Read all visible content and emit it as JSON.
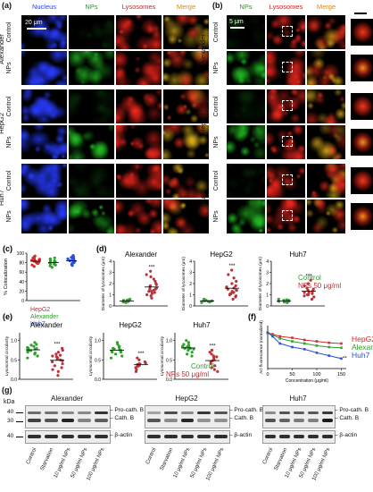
{
  "panel_a": {
    "label": "(a)",
    "headers": [
      "Nucleus",
      "NPs",
      "Lysosomes",
      "Merge"
    ],
    "header_colors": [
      "#1f3fff",
      "#1a9a1a",
      "#e01b1b",
      "#e08a00"
    ],
    "scale_bar": "20 μm",
    "groups": [
      "Alexander",
      "HepG2",
      "Huh7"
    ],
    "rows": [
      "Control",
      "NPs"
    ]
  },
  "panel_b": {
    "label": "(b)",
    "headers": [
      "NPs",
      "Lysosomes",
      "Merge"
    ],
    "header_colors": [
      "#1a9a1a",
      "#e01b1b",
      "#e08a00"
    ],
    "scale_bar": "5 μm",
    "groups": [
      "Alexander",
      "HepG2",
      "Huh7"
    ],
    "rows": [
      "Control",
      "NPs"
    ]
  },
  "panel_c": {
    "label": "(c)",
    "ylabel": "% Colocalization",
    "yticks": [
      "0",
      "20",
      "40",
      "60",
      "80",
      "100"
    ],
    "legend": [
      {
        "name": "HepG2",
        "color": "#d42a2a"
      },
      {
        "name": "Alexander",
        "color": "#2ea02e"
      },
      {
        "name": "Huh7",
        "color": "#2b4fd8"
      }
    ]
  },
  "panel_d": {
    "label": "(d)",
    "ylabel": "Diameter of lysosomes (μm)",
    "legend": [
      {
        "name": "Control",
        "color": "#2ea02e"
      },
      {
        "name": "NPs 50 μg/ml",
        "color": "#b8333a"
      }
    ],
    "significance": "***"
  },
  "panel_e": {
    "label": "(e)",
    "ylabel": "Lysosomal circularity",
    "yticks": [
      "0.0",
      "0.5",
      "1.0"
    ],
    "legend": [
      {
        "name": "Control",
        "color": "#2ea02e"
      },
      {
        "name": "NPs 50 μg/ml",
        "color": "#b8333a"
      }
    ],
    "significance": "***"
  },
  "panel_f": {
    "label": "(f)",
    "ylabel": "AO fluorescence (normalized)",
    "xlabel": "Concentration (μg/ml)",
    "legend": [
      {
        "name": "HepG2",
        "color": "#d42a2a"
      },
      {
        "name": "Alexander",
        "color": "#2ea02e"
      },
      {
        "name": "Huh7",
        "color": "#2b4fd8"
      }
    ],
    "significance": "**"
  },
  "panel_g": {
    "label": "(g)",
    "kda_label": "kDa",
    "mw_markers": [
      "40",
      "30",
      "40"
    ],
    "band_labels": [
      "Pro-cath. B",
      "Cath. B",
      "β-actin"
    ],
    "lanes": [
      "Control",
      "Starvation",
      "10 μg/ml NPs",
      "50 μg/ml NPs",
      "100 μg/ml NPs"
    ],
    "blots": [
      "Alexander",
      "HepG2",
      "Huh7"
    ]
  },
  "chart_data": [
    {
      "id": "c",
      "type": "scatter",
      "categories": [
        "HepG2",
        "Alexander",
        "Huh7"
      ],
      "series": [
        {
          "name": "HepG2",
          "mean": 83,
          "values": [
            72,
            75,
            78,
            80,
            81,
            82,
            83,
            84,
            85,
            86,
            87,
            88,
            90,
            92,
            94
          ]
        },
        {
          "name": "Alexander",
          "mean": 80,
          "values": [
            70,
            73,
            75,
            77,
            78,
            79,
            80,
            81,
            82,
            83,
            84,
            86,
            88,
            90
          ]
        },
        {
          "name": "Huh7",
          "mean": 84,
          "values": [
            74,
            76,
            78,
            80,
            82,
            83,
            84,
            85,
            86,
            87,
            88,
            89,
            91,
            93,
            95
          ]
        }
      ],
      "ylabel": "% Colocalization",
      "ylim": [
        0,
        100
      ]
    },
    {
      "id": "d",
      "type": "scatter",
      "subplots": [
        {
          "title": "Alexander",
          "ylim": [
            0,
            4
          ],
          "yticks": [
            0,
            1,
            2,
            3,
            4
          ],
          "control": [
            0.3,
            0.35,
            0.4,
            0.4,
            0.45,
            0.5,
            0.5,
            0.55,
            0.6,
            0.35,
            0.45,
            0.5
          ],
          "nps": [
            0.7,
            0.9,
            1.0,
            1.1,
            1.2,
            1.3,
            1.4,
            1.5,
            1.5,
            1.6,
            1.7,
            1.8,
            1.9,
            2.0,
            2.2,
            2.4,
            2.6,
            2.8,
            3.1,
            1.3,
            1.6
          ]
        },
        {
          "title": "HepG2",
          "ylim": [
            0,
            4
          ],
          "yticks": [
            0,
            1,
            2,
            3,
            4
          ],
          "control": [
            0.3,
            0.35,
            0.4,
            0.45,
            0.5,
            0.5,
            0.55,
            0.6,
            0.4,
            0.45
          ],
          "nps": [
            0.6,
            0.8,
            0.9,
            1.0,
            1.1,
            1.2,
            1.3,
            1.4,
            1.5,
            1.6,
            1.7,
            1.8,
            2.0,
            2.2,
            2.5,
            2.8,
            3.2,
            1.1,
            1.4
          ]
        },
        {
          "title": "Huh7",
          "ylim": [
            0,
            4
          ],
          "yticks": [
            0,
            1,
            2,
            3,
            4
          ],
          "control": [
            0.3,
            0.35,
            0.4,
            0.45,
            0.5,
            0.55,
            0.6,
            0.4,
            0.5,
            0.45
          ],
          "nps": [
            0.6,
            0.8,
            0.9,
            1.0,
            1.1,
            1.2,
            1.3,
            1.4,
            1.5,
            1.6,
            1.8,
            2.0,
            2.3,
            1.2,
            1.0
          ]
        }
      ],
      "ylabel": "Diameter of lysosomes (μm)"
    },
    {
      "id": "e",
      "type": "scatter",
      "subplots": [
        {
          "title": "Alexander",
          "ylim": [
            0,
            1.2
          ],
          "control": [
            0.55,
            0.6,
            0.65,
            0.7,
            0.72,
            0.75,
            0.78,
            0.8,
            0.82,
            0.85,
            0.88,
            0.9,
            0.95,
            0.68,
            0.74,
            0.79
          ],
          "nps": [
            0.1,
            0.2,
            0.25,
            0.3,
            0.35,
            0.4,
            0.45,
            0.5,
            0.52,
            0.55,
            0.6,
            0.62,
            0.65,
            0.7,
            0.75,
            0.8,
            0.48,
            0.58
          ]
        },
        {
          "title": "HepG2",
          "ylim": [
            0,
            1.2
          ],
          "control": [
            0.55,
            0.6,
            0.65,
            0.7,
            0.72,
            0.75,
            0.78,
            0.8,
            0.82,
            0.85,
            0.9,
            0.95,
            0.7,
            0.76
          ],
          "nps": [
            0.2,
            0.25,
            0.3,
            0.33,
            0.35,
            0.38,
            0.4,
            0.42,
            0.45,
            0.5,
            0.55,
            0.36,
            0.4
          ]
        },
        {
          "title": "Huh7",
          "ylim": [
            0,
            1.2
          ],
          "control": [
            0.6,
            0.65,
            0.7,
            0.75,
            0.78,
            0.8,
            0.82,
            0.85,
            0.88,
            0.9,
            0.95,
            1.0,
            0.84,
            0.8
          ],
          "nps": [
            0.2,
            0.25,
            0.3,
            0.35,
            0.4,
            0.45,
            0.5,
            0.55,
            0.6,
            0.65,
            0.7,
            0.75,
            0.48,
            0.58
          ]
        }
      ],
      "ylabel": "Lysosomal circularity"
    },
    {
      "id": "f",
      "type": "line",
      "x": [
        0,
        10,
        25,
        50,
        75,
        100,
        125,
        150
      ],
      "xticks": [
        0,
        50,
        100,
        150
      ],
      "series": [
        {
          "name": "HepG2",
          "values": [
            1.0,
            0.98,
            0.95,
            0.93,
            0.9,
            0.88,
            0.86,
            0.85
          ]
        },
        {
          "name": "Alexander",
          "values": [
            1.0,
            0.97,
            0.92,
            0.88,
            0.85,
            0.82,
            0.8,
            0.79
          ]
        },
        {
          "name": "Huh7",
          "values": [
            1.0,
            0.95,
            0.85,
            0.8,
            0.77,
            0.72,
            0.68,
            0.64
          ]
        }
      ],
      "xlabel": "Concentration (μg/ml)",
      "ylabel": "AO fluorescence (normalized)",
      "ylim": [
        0.5,
        1.1
      ]
    }
  ]
}
